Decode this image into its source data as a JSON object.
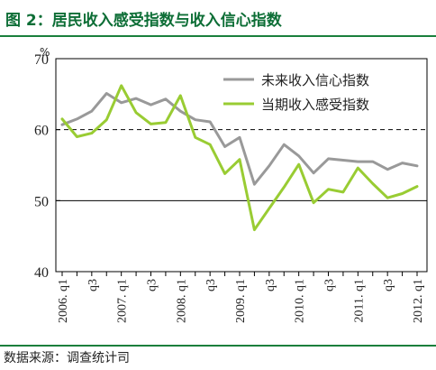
{
  "figure": {
    "caption": "图 2：居民收入感受指数与收入信心指数",
    "source_label": "数据来源：",
    "source_value": "调查统计司"
  },
  "colors": {
    "title_green": "#0d6e36",
    "rule_green": "#1a7f3c",
    "series_confidence": "#999999",
    "series_current": "#99cc33"
  },
  "chart_data": {
    "type": "line",
    "y_unit_label": "%",
    "ylim": [
      40,
      70
    ],
    "yticks": [
      40,
      50,
      60,
      70
    ],
    "reference_lines": [
      {
        "value": 60,
        "style": "dashed"
      },
      {
        "value": 50,
        "style": "solid"
      }
    ],
    "grid": false,
    "legend_position": "top-right",
    "categories": [
      "2006.q1",
      "2006.q2",
      "2006.q3",
      "2006.q4",
      "2007.q1",
      "2007.q2",
      "2007.q3",
      "2007.q4",
      "2008.q1",
      "2008.q2",
      "2008.q3",
      "2008.q4",
      "2009.q1",
      "2009.q2",
      "2009.q3",
      "2009.q4",
      "2010.q1",
      "2010.q2",
      "2010.q3",
      "2010.q4",
      "2011.q1",
      "2011.q2",
      "2011.q3",
      "2011.q4",
      "2012.q1"
    ],
    "tick_labels": [
      "2006. q1",
      "q3",
      "2007. q1",
      "q3",
      "2008. q1",
      "q3",
      "2009. q1",
      "q3",
      "2010. q1",
      "q3",
      "2011. q1",
      "q3",
      "2012. q1"
    ],
    "series": [
      {
        "name": "未来收入信心指数",
        "color": "#999999",
        "values": [
          60.7,
          61.5,
          62.6,
          65.1,
          63.8,
          64.4,
          63.5,
          64.3,
          62.6,
          61.4,
          61.1,
          57.6,
          58.9,
          52.3,
          54.9,
          57.9,
          56.3,
          53.9,
          55.9,
          55.7,
          55.5,
          55.5,
          54.4,
          55.3,
          54.9
        ]
      },
      {
        "name": "当期收入感受指数",
        "color": "#99cc33",
        "values": [
          61.5,
          59.0,
          59.5,
          61.4,
          66.2,
          62.4,
          60.8,
          61.0,
          64.8,
          58.9,
          57.9,
          53.8,
          55.8,
          45.9,
          48.9,
          51.9,
          55.1,
          49.7,
          51.6,
          51.2,
          54.6,
          52.4,
          50.4,
          51.0,
          52.0
        ]
      }
    ]
  }
}
